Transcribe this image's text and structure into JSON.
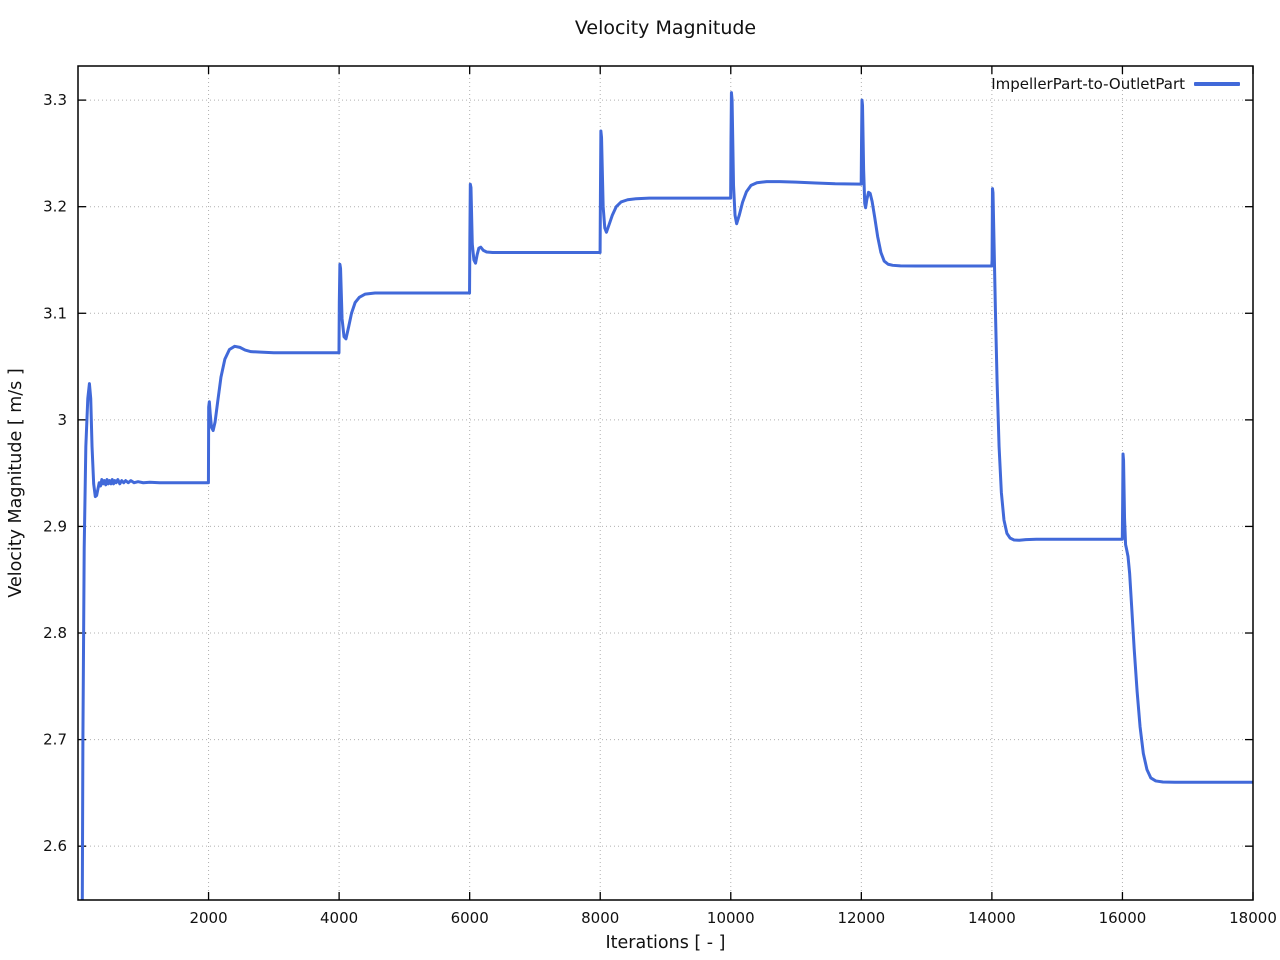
{
  "page": {
    "background": "#ffffff",
    "text_color": "#1a1a1a"
  },
  "chart_data": {
    "type": "line",
    "title": "Velocity Magnitude",
    "xlabel": "Iterations [ - ]",
    "ylabel": "Velocity Magnitude [ m/s ]",
    "xlim": [
      0,
      18000
    ],
    "ylim": [
      2.5495,
      3.332
    ],
    "xticks": [
      2000,
      4000,
      6000,
      8000,
      10000,
      12000,
      14000,
      16000,
      18000
    ],
    "xtick_labels": [
      "2000",
      "4000",
      "6000",
      "8000",
      "10000",
      "12000",
      "14000",
      "16000",
      "18000"
    ],
    "yticks": [
      2.6,
      2.7,
      2.8,
      2.9,
      3.0,
      3.1,
      3.2,
      3.3
    ],
    "ytick_labels": [
      "2.6",
      "2.7",
      "2.8",
      "2.9",
      "3",
      "3.1",
      "3.2",
      "3.3"
    ],
    "grid": "dotted",
    "grid_color": "#b0b0b0",
    "border_color": "#000000",
    "legend_position": "top-right-inside",
    "series": [
      {
        "name": "ImpellerPart-to-OutletPart",
        "color": "#4169d9",
        "points": [
          [
            60,
            2.45
          ],
          [
            75,
            2.7
          ],
          [
            95,
            2.88
          ],
          [
            120,
            2.975
          ],
          [
            150,
            3.02
          ],
          [
            175,
            3.034
          ],
          [
            195,
            3.02
          ],
          [
            215,
            2.975
          ],
          [
            240,
            2.94
          ],
          [
            265,
            2.928
          ],
          [
            285,
            2.929
          ],
          [
            305,
            2.935
          ],
          [
            325,
            2.941
          ],
          [
            345,
            2.938
          ],
          [
            365,
            2.944
          ],
          [
            385,
            2.94
          ],
          [
            405,
            2.943
          ],
          [
            425,
            2.939
          ],
          [
            445,
            2.944
          ],
          [
            465,
            2.94
          ],
          [
            485,
            2.943
          ],
          [
            505,
            2.94
          ],
          [
            525,
            2.944
          ],
          [
            545,
            2.94
          ],
          [
            565,
            2.943
          ],
          [
            585,
            2.941
          ],
          [
            610,
            2.944
          ],
          [
            640,
            2.94
          ],
          [
            670,
            2.943
          ],
          [
            700,
            2.941
          ],
          [
            730,
            2.943
          ],
          [
            770,
            2.941
          ],
          [
            810,
            2.943
          ],
          [
            860,
            2.941
          ],
          [
            920,
            2.942
          ],
          [
            1000,
            2.941
          ],
          [
            1100,
            2.9415
          ],
          [
            1250,
            2.941
          ],
          [
            1450,
            2.941
          ],
          [
            1700,
            2.941
          ],
          [
            1998,
            2.941
          ],
          [
            2002,
            3.012
          ],
          [
            2012,
            3.017
          ],
          [
            2025,
            3.006
          ],
          [
            2045,
            2.993
          ],
          [
            2070,
            2.99
          ],
          [
            2100,
            2.998
          ],
          [
            2140,
            3.017
          ],
          [
            2190,
            3.04
          ],
          [
            2250,
            3.057
          ],
          [
            2320,
            3.066
          ],
          [
            2400,
            3.069
          ],
          [
            2480,
            3.068
          ],
          [
            2560,
            3.0655
          ],
          [
            2650,
            3.064
          ],
          [
            2800,
            3.0635
          ],
          [
            3000,
            3.063
          ],
          [
            3300,
            3.063
          ],
          [
            3700,
            3.063
          ],
          [
            3998,
            3.063
          ],
          [
            4003,
            3.11
          ],
          [
            4012,
            3.146
          ],
          [
            4022,
            3.142
          ],
          [
            4045,
            3.095
          ],
          [
            4075,
            3.078
          ],
          [
            4105,
            3.076
          ],
          [
            4145,
            3.087
          ],
          [
            4190,
            3.1
          ],
          [
            4245,
            3.11
          ],
          [
            4310,
            3.115
          ],
          [
            4400,
            3.118
          ],
          [
            4550,
            3.119
          ],
          [
            4800,
            3.119
          ],
          [
            5200,
            3.119
          ],
          [
            5600,
            3.119
          ],
          [
            5998,
            3.119
          ],
          [
            6003,
            3.17
          ],
          [
            6010,
            3.221
          ],
          [
            6020,
            3.218
          ],
          [
            6040,
            3.165
          ],
          [
            6065,
            3.15
          ],
          [
            6090,
            3.147
          ],
          [
            6115,
            3.155
          ],
          [
            6140,
            3.161
          ],
          [
            6170,
            3.162
          ],
          [
            6210,
            3.159
          ],
          [
            6260,
            3.1575
          ],
          [
            6350,
            3.157
          ],
          [
            6500,
            3.157
          ],
          [
            6800,
            3.157
          ],
          [
            7200,
            3.157
          ],
          [
            7600,
            3.157
          ],
          [
            7998,
            3.157
          ],
          [
            8003,
            3.21
          ],
          [
            8010,
            3.271
          ],
          [
            8020,
            3.265
          ],
          [
            8045,
            3.2
          ],
          [
            8070,
            3.18
          ],
          [
            8095,
            3.176
          ],
          [
            8135,
            3.183
          ],
          [
            8185,
            3.192
          ],
          [
            8245,
            3.2
          ],
          [
            8320,
            3.2045
          ],
          [
            8420,
            3.2065
          ],
          [
            8550,
            3.2075
          ],
          [
            8750,
            3.208
          ],
          [
            9100,
            3.208
          ],
          [
            9500,
            3.208
          ],
          [
            9998,
            3.208
          ],
          [
            10003,
            3.26
          ],
          [
            10010,
            3.307
          ],
          [
            10020,
            3.3
          ],
          [
            10042,
            3.22
          ],
          [
            10065,
            3.192
          ],
          [
            10090,
            3.184
          ],
          [
            10130,
            3.192
          ],
          [
            10180,
            3.204
          ],
          [
            10240,
            3.214
          ],
          [
            10310,
            3.22
          ],
          [
            10400,
            3.2225
          ],
          [
            10550,
            3.2235
          ],
          [
            10750,
            3.2235
          ],
          [
            11000,
            3.223
          ],
          [
            11300,
            3.2222
          ],
          [
            11600,
            3.2215
          ],
          [
            11998,
            3.2212
          ],
          [
            12003,
            3.26
          ],
          [
            12010,
            3.3
          ],
          [
            12018,
            3.295
          ],
          [
            12035,
            3.235
          ],
          [
            12052,
            3.203
          ],
          [
            12065,
            3.199
          ],
          [
            12085,
            3.207
          ],
          [
            12110,
            3.2135
          ],
          [
            12135,
            3.2125
          ],
          [
            12165,
            3.205
          ],
          [
            12205,
            3.19
          ],
          [
            12250,
            3.172
          ],
          [
            12300,
            3.157
          ],
          [
            12350,
            3.149
          ],
          [
            12410,
            3.146
          ],
          [
            12480,
            3.145
          ],
          [
            12600,
            3.1445
          ],
          [
            12850,
            3.1443
          ],
          [
            13200,
            3.1443
          ],
          [
            13600,
            3.1443
          ],
          [
            13998,
            3.1443
          ],
          [
            14003,
            3.15
          ],
          [
            14009,
            3.217
          ],
          [
            14017,
            3.213
          ],
          [
            14035,
            3.16
          ],
          [
            14055,
            3.1
          ],
          [
            14080,
            3.035
          ],
          [
            14110,
            2.975
          ],
          [
            14145,
            2.932
          ],
          [
            14185,
            2.906
          ],
          [
            14230,
            2.8935
          ],
          [
            14280,
            2.889
          ],
          [
            14340,
            2.8873
          ],
          [
            14420,
            2.887
          ],
          [
            14520,
            2.8876
          ],
          [
            14680,
            2.888
          ],
          [
            14900,
            2.888
          ],
          [
            15300,
            2.888
          ],
          [
            15700,
            2.888
          ],
          [
            15998,
            2.888
          ],
          [
            16003,
            2.92
          ],
          [
            16009,
            2.968
          ],
          [
            16017,
            2.962
          ],
          [
            16032,
            2.908
          ],
          [
            16048,
            2.883
          ],
          [
            16062,
            2.879
          ],
          [
            16085,
            2.872
          ],
          [
            16110,
            2.856
          ],
          [
            16140,
            2.826
          ],
          [
            16180,
            2.785
          ],
          [
            16225,
            2.745
          ],
          [
            16270,
            2.712
          ],
          [
            16320,
            2.687
          ],
          [
            16375,
            2.672
          ],
          [
            16435,
            2.664
          ],
          [
            16510,
            2.6612
          ],
          [
            16620,
            2.6602
          ],
          [
            16800,
            2.66
          ],
          [
            17100,
            2.66
          ],
          [
            17500,
            2.66
          ],
          [
            18000,
            2.66
          ]
        ]
      }
    ]
  }
}
